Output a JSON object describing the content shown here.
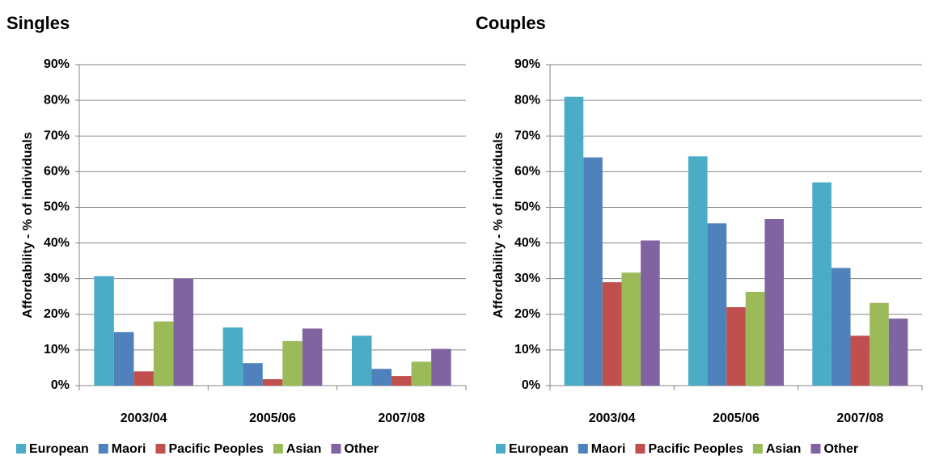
{
  "chart_data": [
    {
      "type": "bar",
      "title": "Singles",
      "y_label": "Affordability - % of individuals",
      "categories": [
        "2003/04",
        "2005/06",
        "2007/08"
      ],
      "series": [
        {
          "name": "European",
          "color": "#4bacc6",
          "values": [
            30.7,
            16.3,
            14
          ]
        },
        {
          "name": "Maori",
          "color": "#4f81bd",
          "values": [
            15,
            6.3,
            4.7
          ]
        },
        {
          "name": "Pacific Peoples",
          "color": "#c0504d",
          "values": [
            4,
            1.8,
            2.7
          ]
        },
        {
          "name": "Asian",
          "color": "#9bbb59",
          "values": [
            18,
            12.5,
            6.7
          ]
        },
        {
          "name": "Other",
          "color": "#8064a2",
          "values": [
            30,
            16,
            10.3
          ]
        }
      ],
      "ylim": [
        0,
        90
      ],
      "yticks": [
        {
          "value": 0,
          "label": "0%"
        },
        {
          "value": 10,
          "label": "10%"
        },
        {
          "value": 20,
          "label": "20%"
        },
        {
          "value": 30,
          "label": "30%"
        },
        {
          "value": 40,
          "label": "40%"
        },
        {
          "value": 50,
          "label": "50%"
        },
        {
          "value": 60,
          "label": "60%"
        },
        {
          "value": 70,
          "label": "70%"
        },
        {
          "value": 80,
          "label": "80%"
        },
        {
          "value": 90,
          "label": "90%"
        }
      ],
      "grid": true,
      "legend": "bottom"
    },
    {
      "type": "bar",
      "title": "Couples",
      "y_label": "Affordability - % of individuals",
      "categories": [
        "2003/04",
        "2005/06",
        "2007/08"
      ],
      "series": [
        {
          "name": "European",
          "color": "#4bacc6",
          "values": [
            81,
            64.3,
            57
          ]
        },
        {
          "name": "Maori",
          "color": "#4f81bd",
          "values": [
            64,
            45.5,
            33
          ]
        },
        {
          "name": "Pacific Peoples",
          "color": "#c0504d",
          "values": [
            29,
            22,
            14
          ]
        },
        {
          "name": "Asian",
          "color": "#9bbb59",
          "values": [
            31.7,
            26.3,
            23.2
          ]
        },
        {
          "name": "Other",
          "color": "#8064a2",
          "values": [
            40.7,
            46.7,
            18.8
          ]
        }
      ],
      "ylim": [
        0,
        90
      ],
      "yticks": [
        {
          "value": 0,
          "label": "0%"
        },
        {
          "value": 10,
          "label": "10%"
        },
        {
          "value": 20,
          "label": "20%"
        },
        {
          "value": 30,
          "label": "30%"
        },
        {
          "value": 40,
          "label": "40%"
        },
        {
          "value": 50,
          "label": "50%"
        },
        {
          "value": 60,
          "label": "60%"
        },
        {
          "value": 70,
          "label": "70%"
        },
        {
          "value": 80,
          "label": "80%"
        },
        {
          "value": 90,
          "label": "90%"
        }
      ],
      "grid": true,
      "legend": "bottom"
    }
  ]
}
